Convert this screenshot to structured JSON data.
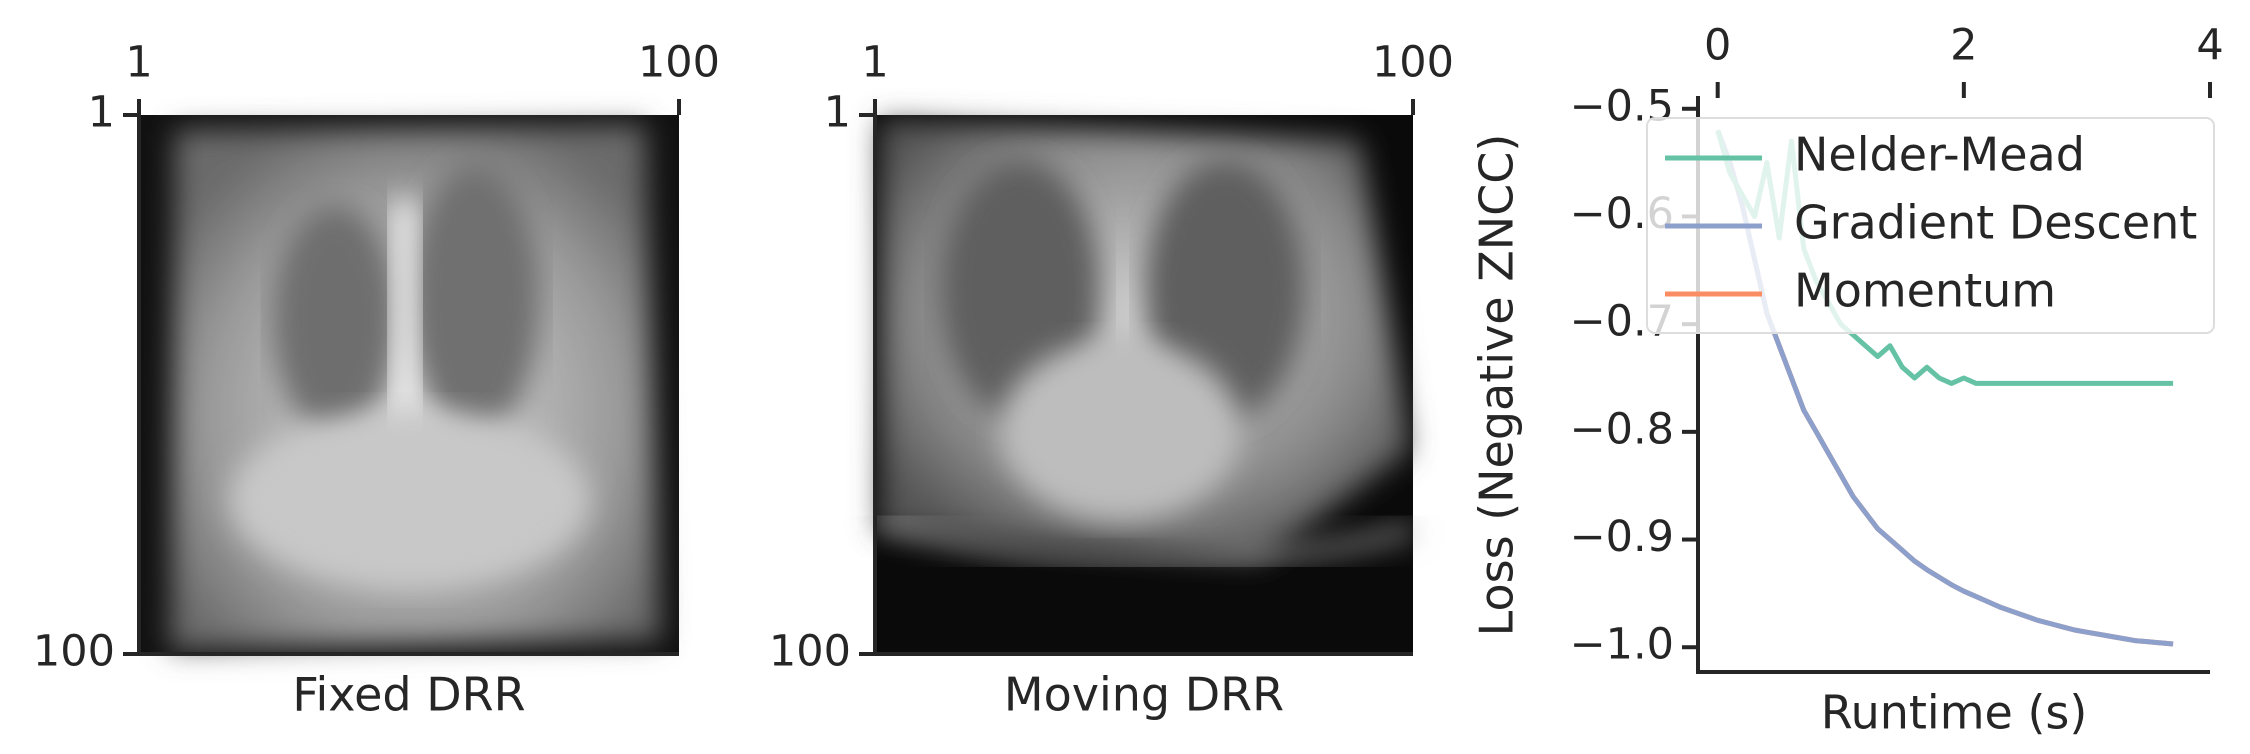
{
  "chart_data": [
    {
      "type": "image",
      "xlabel": "Fixed DRR",
      "xlim": [
        1,
        100
      ],
      "ylim": [
        1,
        100
      ],
      "xticks": [
        1,
        100
      ],
      "yticks": [
        1,
        100
      ]
    },
    {
      "type": "image",
      "xlabel": "Moving DRR",
      "xlim": [
        1,
        100
      ],
      "ylim": [
        1,
        100
      ],
      "xticks": [
        1,
        100
      ],
      "yticks": [
        1,
        100
      ]
    },
    {
      "type": "line",
      "xlabel": "Runtime (s)",
      "ylabel": "Loss (Negative ZNCC)",
      "xlim": [
        -0.16,
        4.0
      ],
      "ylim": [
        -1.023,
        -0.49
      ],
      "xticks": [
        0,
        2,
        4
      ],
      "yticks": [
        {
          "value": -0.5,
          "label": "−0.5"
        },
        {
          "value": -0.6,
          "label": "−0.6"
        },
        {
          "value": -0.7,
          "label": "−0.7"
        },
        {
          "value": -0.8,
          "label": "−0.8"
        },
        {
          "value": -0.9,
          "label": "−0.9"
        },
        {
          "value": -1.0,
          "label": "−1.0"
        }
      ],
      "legend": "upper right",
      "x": [
        0,
        0.1,
        0.2,
        0.3,
        0.4,
        0.5,
        0.6,
        0.7,
        0.8,
        0.9,
        1.0,
        1.1,
        1.2,
        1.3,
        1.4,
        1.5,
        1.6,
        1.7,
        1.8,
        1.9,
        2.0,
        2.1,
        2.2,
        2.3,
        2.4,
        2.5,
        2.6,
        2.7,
        2.8,
        2.9,
        3.0,
        3.1,
        3.2,
        3.3,
        3.4,
        3.5,
        3.6,
        3.7
      ],
      "series": [
        {
          "name": "Nelder-Mead",
          "color": "#66c2a5",
          "values": [
            -0.52,
            -0.56,
            -0.58,
            -0.6,
            -0.55,
            -0.62,
            -0.53,
            -0.63,
            -0.66,
            -0.68,
            -0.7,
            -0.71,
            -0.72,
            -0.73,
            -0.72,
            -0.74,
            -0.75,
            -0.74,
            -0.75,
            -0.755,
            -0.75,
            -0.755,
            -0.755,
            -0.755,
            -0.755,
            -0.755,
            -0.755,
            -0.755,
            -0.755,
            -0.755,
            -0.755,
            -0.755,
            -0.755,
            -0.755,
            -0.755,
            -0.755,
            -0.755,
            -0.755
          ]
        },
        {
          "name": "Gradient Descent",
          "color": "#8da0cb",
          "values": [
            -0.52,
            -0.55,
            -0.59,
            -0.64,
            -0.69,
            -0.72,
            -0.75,
            -0.78,
            -0.8,
            -0.82,
            -0.84,
            -0.86,
            -0.875,
            -0.89,
            -0.9,
            -0.91,
            -0.92,
            -0.928,
            -0.935,
            -0.942,
            -0.948,
            -0.953,
            -0.958,
            -0.963,
            -0.967,
            -0.971,
            -0.975,
            -0.978,
            -0.981,
            -0.984,
            -0.986,
            -0.988,
            -0.99,
            -0.992,
            -0.994,
            -0.995,
            -0.996,
            -0.997
          ]
        },
        {
          "name": "Momentum",
          "color": "#fc8d62",
          "values": [
            -0.52,
            -0.55,
            -0.59,
            -0.64,
            -0.69,
            -0.72,
            -0.75,
            -0.78,
            -0.8,
            -0.82,
            -0.84,
            -0.86,
            -0.875,
            -0.89,
            -0.9,
            -0.91,
            -0.92,
            -0.928,
            -0.935,
            -0.942,
            -0.948,
            -0.953,
            -0.958,
            -0.963,
            -0.967,
            -0.971,
            -0.975,
            -0.978,
            -0.981,
            -0.984,
            -0.986,
            -0.988,
            -0.99,
            -0.992,
            -0.994,
            -0.995,
            -0.996,
            -0.997
          ]
        }
      ]
    }
  ]
}
